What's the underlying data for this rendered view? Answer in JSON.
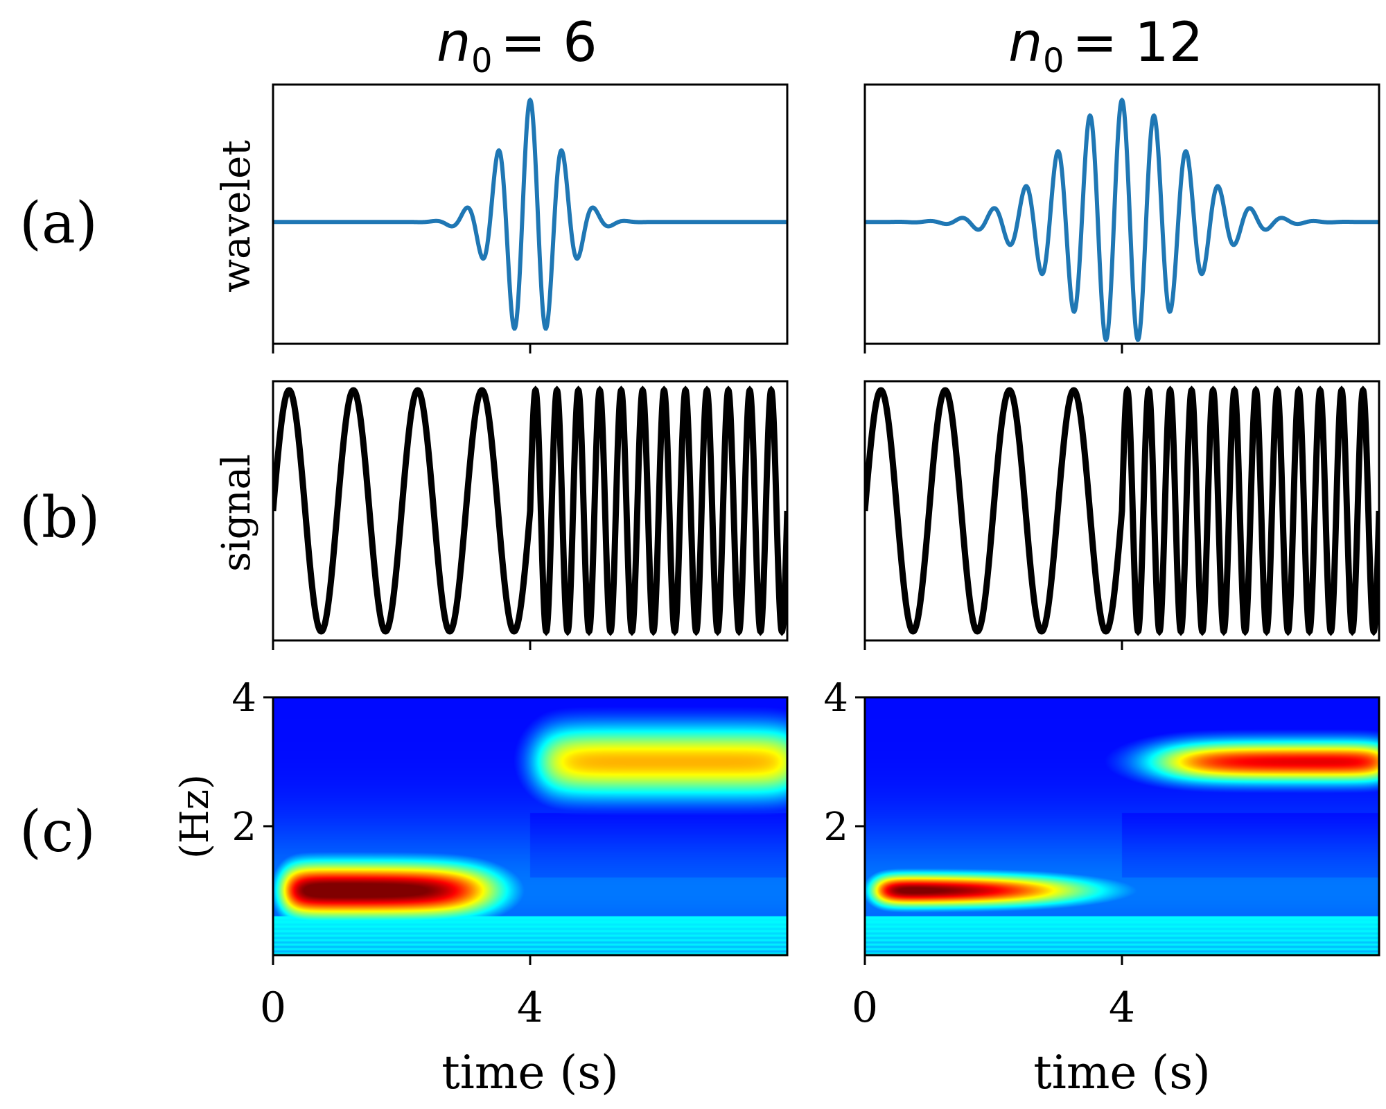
{
  "row_labels": [
    "(a)",
    "(b)",
    "(c)"
  ],
  "y_labels": {
    "wavelet": "wavelet",
    "signal": "signal",
    "freq": "(Hz)"
  },
  "x_label": "time (s)",
  "colors": {
    "wavelet": "#1f77b4",
    "signal": "#000000"
  },
  "chart_data": [
    {
      "type": "line",
      "title": "n_0 = 6",
      "title_var": "n",
      "title_sub": "0",
      "title_value": "= 6",
      "row": "wavelet",
      "n0": 6,
      "xlim": [
        -8,
        8
      ],
      "ylabel": "wavelet"
    },
    {
      "type": "line",
      "title": "n_0 = 12",
      "title_var": "n",
      "title_sub": "0",
      "title_value": "= 12",
      "row": "wavelet",
      "n0": 12,
      "xlim": [
        -8,
        8
      ],
      "ylabel": ""
    },
    {
      "type": "line",
      "row": "signal",
      "xlim": [
        0,
        8
      ],
      "ylim": [
        -1,
        1
      ],
      "ylabel": "signal",
      "segments": [
        {
          "t_start": 0,
          "t_end": 4,
          "freq_hz": 1
        },
        {
          "t_start": 4,
          "t_end": 8,
          "freq_hz": 3
        }
      ]
    },
    {
      "type": "line",
      "row": "signal",
      "xlim": [
        0,
        8
      ],
      "ylim": [
        -1,
        1
      ],
      "ylabel": "",
      "segments": [
        {
          "t_start": 0,
          "t_end": 4,
          "freq_hz": 1
        },
        {
          "t_start": 4,
          "t_end": 8,
          "freq_hz": 3
        }
      ]
    },
    {
      "type": "heatmap",
      "row": "freq",
      "n0": 6,
      "xlim": [
        0,
        8
      ],
      "ylim": [
        0,
        4
      ],
      "xticks": [
        0,
        4
      ],
      "xtick_labels": [
        "0",
        "4"
      ],
      "yticks": [
        2,
        4
      ],
      "ytick_labels": [
        "2",
        "4"
      ],
      "xlabel": "time (s)",
      "ylabel": "(Hz)",
      "colormap": "jet",
      "bands": [
        {
          "t_start": 0,
          "t_end": 4,
          "freq_hz": 1
        },
        {
          "t_start": 4,
          "t_end": 8,
          "freq_hz": 3
        }
      ]
    },
    {
      "type": "heatmap",
      "row": "freq",
      "n0": 12,
      "xlim": [
        0,
        8
      ],
      "ylim": [
        0,
        4
      ],
      "xticks": [
        0,
        4
      ],
      "xtick_labels": [
        "0",
        "4"
      ],
      "yticks": [
        2,
        4
      ],
      "ytick_labels": [
        "2",
        "4"
      ],
      "xlabel": "time (s)",
      "ylabel": "",
      "colormap": "jet",
      "bands": [
        {
          "t_start": 0,
          "t_end": 4,
          "freq_hz": 1
        },
        {
          "t_start": 4,
          "t_end": 8,
          "freq_hz": 3
        }
      ]
    }
  ]
}
